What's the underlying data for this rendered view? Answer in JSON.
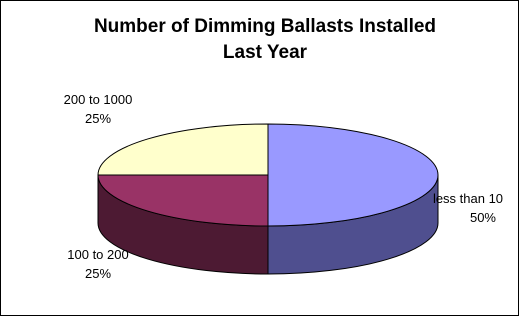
{
  "chart_data": {
    "type": "pie",
    "title": "Number of Dimming Ballasts Installed\nLast Year",
    "three_d": true,
    "slices": [
      {
        "label": "less than 10",
        "value": 50,
        "value_label": "50%",
        "color": "#9999ff",
        "side_color": "#4f4f8f"
      },
      {
        "label": "100 to 200",
        "value": 25,
        "value_label": "25%",
        "color": "#993366",
        "side_color": "#4d1a33"
      },
      {
        "label": "200 to 1000",
        "value": 25,
        "value_label": "25%",
        "color": "#ffffcc",
        "side_color": "#d8d8a8"
      }
    ]
  }
}
